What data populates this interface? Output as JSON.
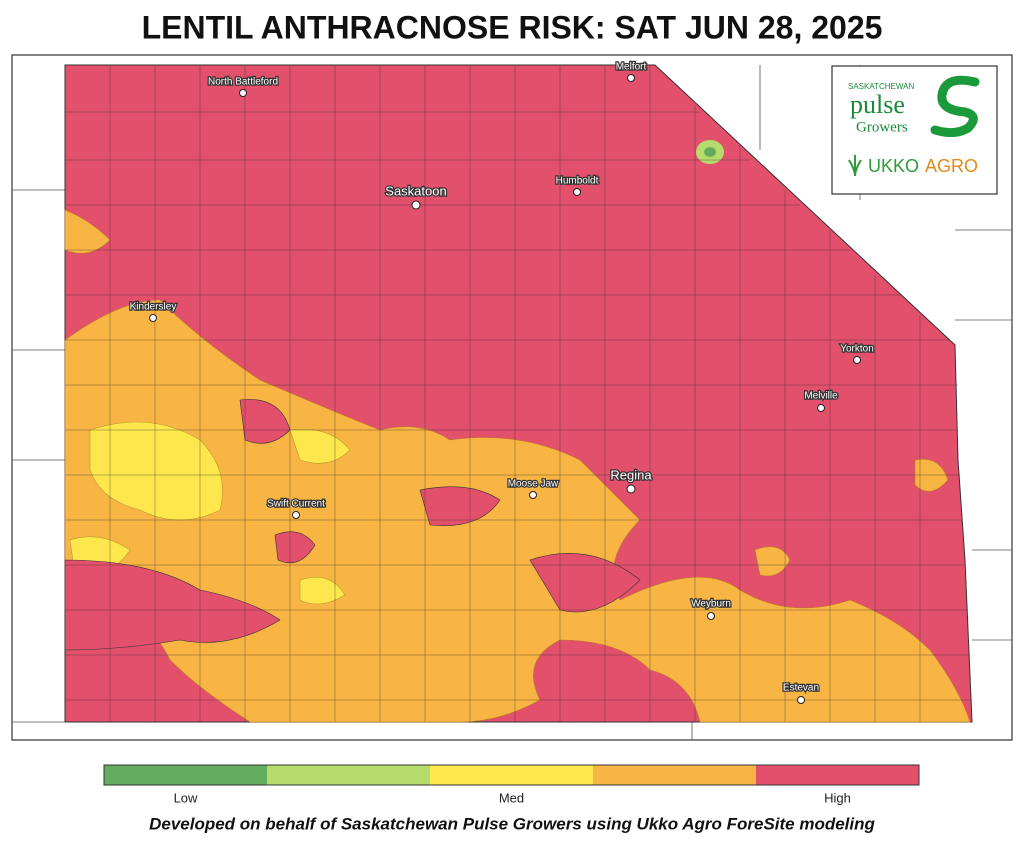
{
  "header": {
    "title": "LENTIL ANTHRACNOSE RISK: SAT JUN 28, 2025"
  },
  "map": {
    "cities": [
      "North Battleford",
      "Melfort",
      "Saskatoon",
      "Humboldt",
      "Kindersley",
      "Yorkton",
      "Melville",
      "Moose Jaw",
      "Regina",
      "Swift Current",
      "Weyburn",
      "Estevan"
    ]
  },
  "logo": {
    "org_line1": "SASKATCHEWAN",
    "org_line2": "pulse",
    "org_line3": "Growers",
    "partner_1": "UKKO",
    "partner_2": "AGRO"
  },
  "legend": {
    "colors": [
      "#63ab5d",
      "#b5db6c",
      "#fde74c",
      "#f9b544",
      "#e2506c"
    ],
    "labels": [
      "Low",
      "Med",
      "High"
    ]
  },
  "footer": {
    "text": "Developed on behalf of Saskatchewan Pulse Growers using Ukko Agro ForeSite modeling"
  }
}
